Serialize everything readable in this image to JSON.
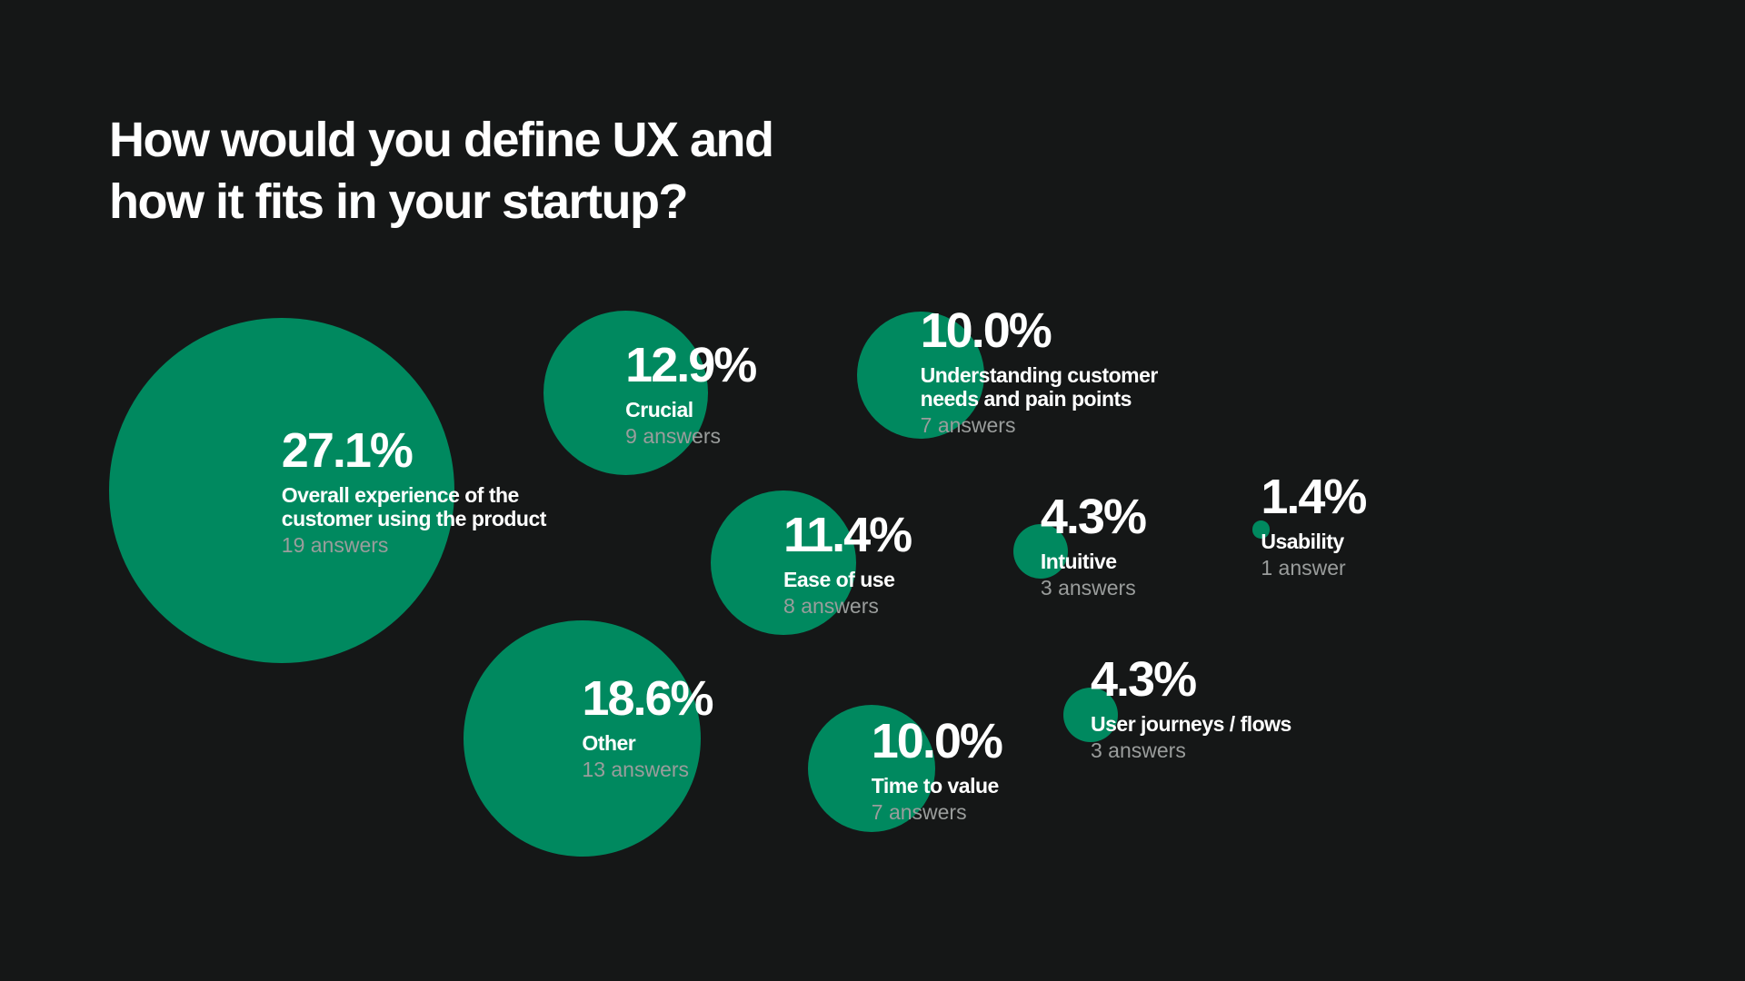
{
  "chart_data": {
    "type": "bubble",
    "title": "How would you define UX and how it fits in your startup?",
    "color": "#00895f",
    "categories": [
      "Overall experience of the customer using the product",
      "Crucial",
      "Understanding customer needs and pain points",
      "Ease of use",
      "Intuitive",
      "Usability",
      "Other",
      "Time to value",
      "User journeys / flows"
    ],
    "values": [
      27.1,
      12.9,
      10.0,
      11.4,
      4.3,
      1.4,
      18.6,
      10.0,
      4.3
    ],
    "value_labels": [
      "27.1%",
      "12.9%",
      "10.0%",
      "11.4%",
      "4.3%",
      "1.4%",
      "18.6%",
      "10.0%",
      "4.3%"
    ],
    "answers": [
      "19 answers",
      "9 answers",
      "7 answers",
      "8 answers",
      "3 answers",
      "1 answer",
      "13 answers",
      "7 answers",
      "3 answers"
    ]
  }
}
